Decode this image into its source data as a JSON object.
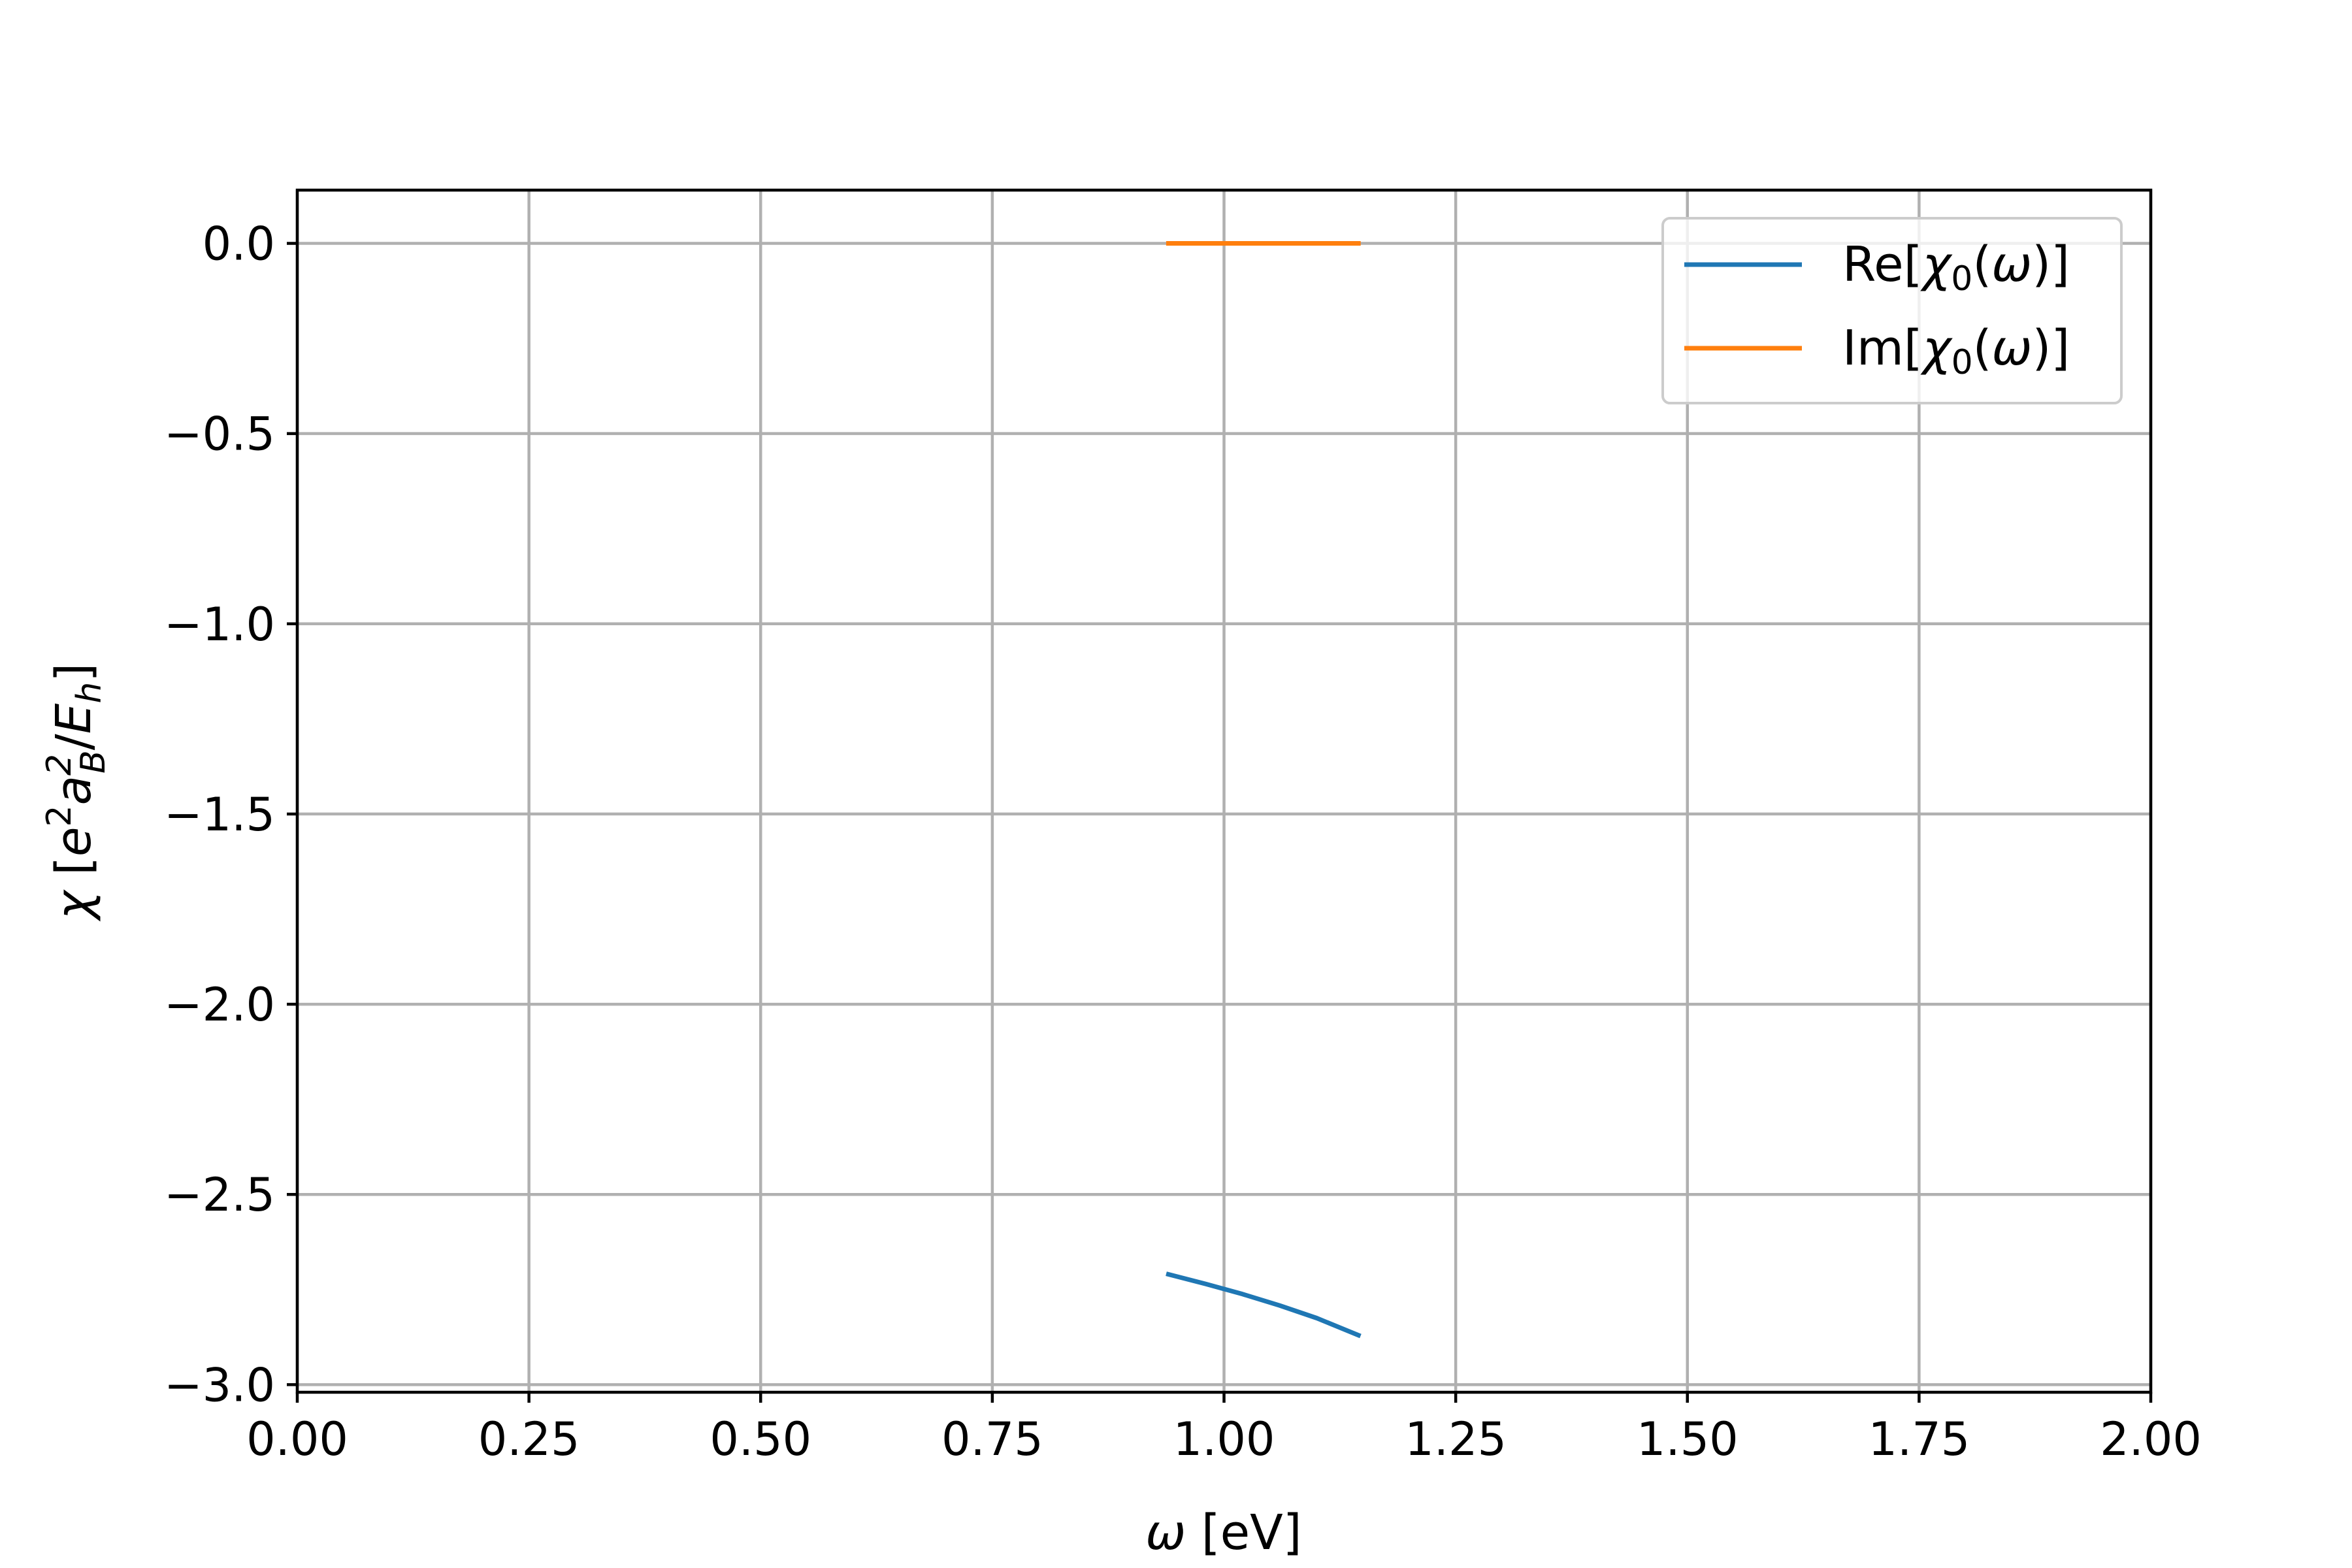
{
  "chart_data": {
    "type": "line",
    "xlabel": "ω [eV]",
    "ylabel": "χ [e²a_B²/E_h]",
    "xlim": [
      0.0,
      2.0
    ],
    "ylim": [
      -3.02,
      0.14
    ],
    "xticks": [
      0.0,
      0.25,
      0.5,
      0.75,
      1.0,
      1.25,
      1.5,
      1.75,
      2.0
    ],
    "xtick_labels": [
      "0.00",
      "0.25",
      "0.50",
      "0.75",
      "1.00",
      "1.25",
      "1.50",
      "1.75",
      "2.00"
    ],
    "yticks": [
      0.0,
      -0.5,
      -1.0,
      -1.5,
      -2.0,
      -2.5,
      -3.0
    ],
    "ytick_labels": [
      "0.0",
      "−0.5",
      "−1.0",
      "−1.5",
      "−2.0",
      "−2.5",
      "−3.0"
    ],
    "grid": true,
    "legend_position": "top-right",
    "series": [
      {
        "name": "Re[χ0(ω)]",
        "color": "#1f77b4",
        "x": [
          0.94,
          0.98,
          1.02,
          1.06,
          1.1,
          1.145
        ],
        "y": [
          -2.71,
          -2.735,
          -2.762,
          -2.792,
          -2.825,
          -2.87
        ]
      },
      {
        "name": "Im[χ0(ω)]",
        "color": "#ff7f0e",
        "x": [
          0.94,
          0.98,
          1.02,
          1.06,
          1.1,
          1.145
        ],
        "y": [
          0.0,
          0.0,
          0.0,
          0.0,
          0.0,
          0.0
        ]
      }
    ]
  }
}
